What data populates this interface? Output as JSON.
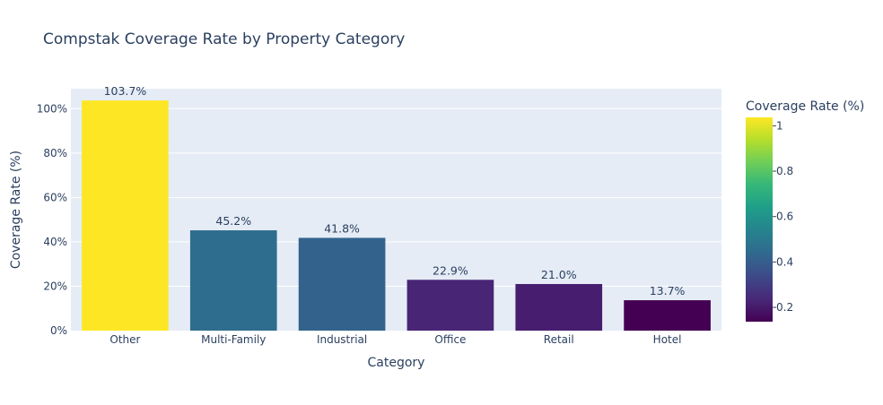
{
  "chart_data": {
    "type": "bar",
    "title": "Compstak Coverage Rate by Property Category",
    "xlabel": "Category",
    "ylabel": "Coverage Rate (%)",
    "categories": [
      "Other",
      "Multi-Family",
      "Industrial",
      "Office",
      "Retail",
      "Hotel"
    ],
    "values": [
      1.037,
      0.452,
      0.418,
      0.229,
      0.21,
      0.137
    ],
    "data_labels": [
      "103.7%",
      "45.2%",
      "41.8%",
      "22.9%",
      "21.0%",
      "13.7%"
    ],
    "ylim": [
      0,
      1.09
    ],
    "yticks": [
      0,
      0.2,
      0.4,
      0.6,
      0.8,
      1.0
    ],
    "ytick_labels": [
      "0%",
      "20%",
      "40%",
      "60%",
      "80%",
      "100%"
    ],
    "grid": true,
    "colorscale": "Viridis",
    "colorbar": {
      "title": "Coverage Rate (%)",
      "range": [
        0.137,
        1.037
      ],
      "ticks": [
        0.2,
        0.4,
        0.6,
        0.8,
        1.0
      ],
      "tick_labels": [
        "0.2",
        "0.4",
        "0.6",
        "0.8",
        "1"
      ],
      "placement": "right"
    },
    "colors": {
      "plot_bg": "#e5ecf6",
      "grid": "#ffffff",
      "text": "#2a3f5f"
    }
  }
}
